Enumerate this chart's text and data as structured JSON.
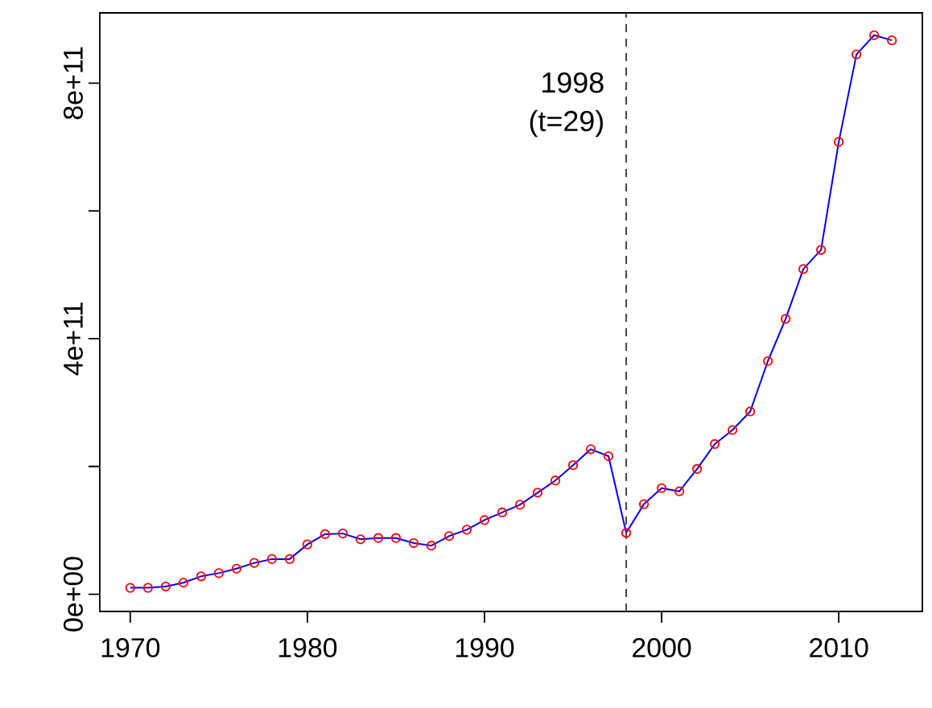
{
  "chart_data": {
    "type": "line",
    "x": [
      1970,
      1971,
      1972,
      1973,
      1974,
      1975,
      1976,
      1977,
      1978,
      1979,
      1980,
      1981,
      1982,
      1983,
      1984,
      1985,
      1986,
      1987,
      1988,
      1989,
      1990,
      1991,
      1992,
      1993,
      1994,
      1995,
      1996,
      1997,
      1998,
      1999,
      2000,
      2001,
      2002,
      2003,
      2004,
      2005,
      2006,
      2007,
      2008,
      2009,
      2010,
      2011,
      2012,
      2013
    ],
    "series": [
      {
        "color": "#0000ff",
        "values": [
          10000000000.0,
          10000000000.0,
          12000000000.0,
          18000000000.0,
          28000000000.0,
          33000000000.0,
          40000000000.0,
          49000000000.0,
          55000000000.0,
          55000000000.0,
          78000000000.0,
          94000000000.0,
          95000000000.0,
          86000000000.0,
          88000000000.0,
          88000000000.0,
          80000000000.0,
          76000000000.0,
          91000000000.0,
          101000000000.0,
          116000000000.0,
          128000000000.0,
          140000000000.0,
          159000000000.0,
          178000000000.0,
          202000000000.0,
          227000000000.0,
          216000000000.0,
          96000000000.0,
          141000000000.0,
          166000000000.0,
          161000000000.0,
          196000000000.0,
          235000000000.0,
          257000000000.0,
          286000000000.0,
          365000000000.0,
          431000000000.0,
          509000000000.0,
          539000000000.0,
          708000000000.0,
          845000000000.0,
          875000000000.0,
          867000000000.0
        ],
        "colors": [
          "#ff0000",
          "#ff0000",
          "#ff0000",
          "#ff0000",
          "#ff0000",
          "#ff0000",
          "#ff0000",
          "#ff0000",
          "#ff0000",
          "#ff0000",
          "#ff0000",
          "#ff0000",
          "#ff0000",
          "#ff0000",
          "#ff0000",
          "#ff0000",
          "#ff0000",
          "#ff0000",
          "#ff0000",
          "#ff0000",
          "#ff0000",
          "#ff0000",
          "#ff0000",
          "#ff0000",
          "#ff0000",
          "#ff0000",
          "#ff0000",
          "#ff0000",
          "#ff0000",
          "#ff0000",
          "#ff0000",
          "#ff0000",
          "#ff0000",
          "#ff0000",
          "#ff0000",
          "#ff0000",
          "#ff0000",
          "#ff0000",
          "#ff0000",
          "#ff0000",
          "#ff0000",
          "#ff0000",
          "#ff0000",
          "#ff0000"
        ]
      }
    ],
    "xlim": [
      1968.28,
      2014.72
    ],
    "ylim": [
      -27000000000.0,
      910000000000.0
    ],
    "xticks": [
      1970,
      1980,
      1990,
      2000,
      2010
    ],
    "yticks": [
      {
        "value": 0,
        "label": "0e+00"
      },
      {
        "value": 200000000000.0,
        "label": null
      },
      {
        "value": 400000000000.0,
        "label": "4e+11"
      },
      {
        "value": 600000000000.0,
        "label": null
      },
      {
        "value": 800000000000.0,
        "label": "8e+11"
      }
    ],
    "ref_lines": [
      {
        "axis": "x",
        "value": 1998,
        "label": "1998 (t=29)",
        "color": "#444444",
        "line_style": "dashed"
      }
    ],
    "marker": "circle",
    "line_style": "solid",
    "grid": false
  }
}
